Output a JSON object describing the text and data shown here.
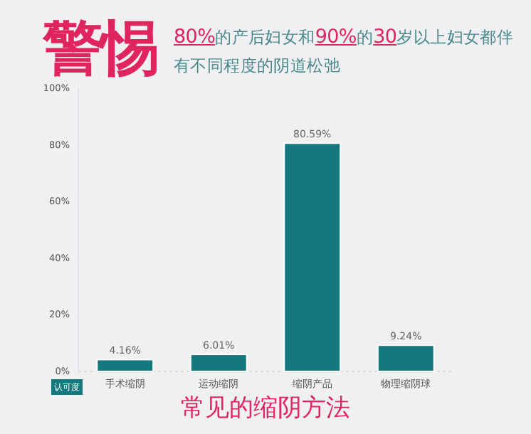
{
  "chart_data": {
    "type": "bar",
    "title": "警惕",
    "subtitle": "80%的产后妇女和90%的30岁以上妇女都伴有不同程度的阴道松弛",
    "xlabel": "常见的缩阴方法",
    "ylabel": "认可度",
    "categories": [
      "手术缩阴",
      "运动缩阴",
      "缩阴产品",
      "物理缩阴球"
    ],
    "values": [
      4.16,
      6.01,
      80.59,
      9.24
    ],
    "value_labels": [
      "4.16%",
      "6.01%",
      "80.59%",
      "9.24%"
    ],
    "color": "#15787e",
    "ylim": [
      0,
      100
    ],
    "yticks": [
      {
        "value": 0,
        "label": "0%"
      },
      {
        "value": 20,
        "label": "20%"
      },
      {
        "value": 40,
        "label": "40%"
      },
      {
        "value": 60,
        "label": "60%"
      },
      {
        "value": 80,
        "label": "80%"
      },
      {
        "value": 100,
        "label": "100%"
      }
    ],
    "grid": false
  }
}
